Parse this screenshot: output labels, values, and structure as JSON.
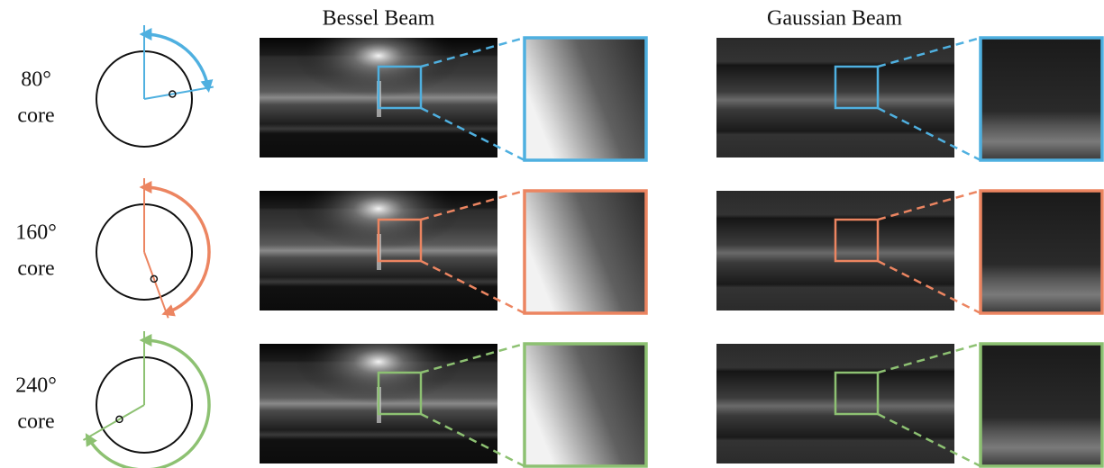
{
  "columns": [
    "Bessel Beam",
    "Gaussian Beam"
  ],
  "rows": [
    {
      "angle": "80°",
      "label": "core",
      "color": "#4fb0e0"
    },
    {
      "angle": "160°",
      "label": "core",
      "color": "#ec8561"
    },
    {
      "angle": "240°",
      "label": "core",
      "color": "#8dc172"
    }
  ]
}
